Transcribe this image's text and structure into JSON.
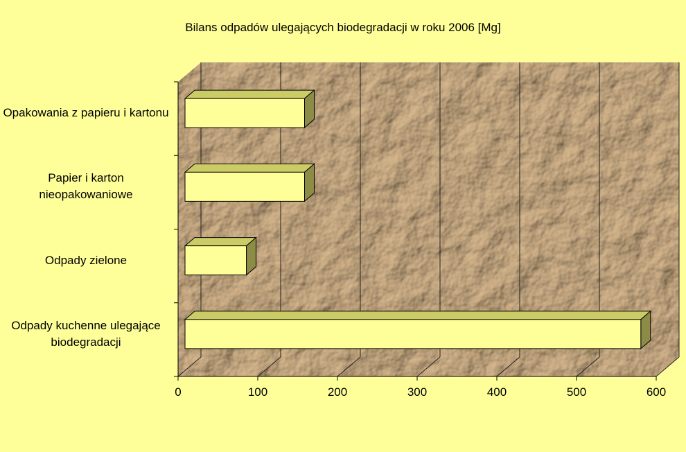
{
  "chart_data": {
    "type": "bar3d_horizontal",
    "title": "Bilans odpadów ulegających biodegradacji w roku 2006 [Mg]",
    "categories": [
      "Opakowania z papieru i kartonu",
      "Papier i karton nieopakowaniowe",
      "Odpady zielone",
      "Odpady kuchenne ulegające biodegradacji"
    ],
    "values": [
      150,
      150,
      77,
      572
    ],
    "color": "#ffff99",
    "xlim": [
      0,
      600
    ],
    "xticks": [
      0,
      100,
      200,
      300,
      400,
      500,
      600
    ],
    "grid": true
  }
}
